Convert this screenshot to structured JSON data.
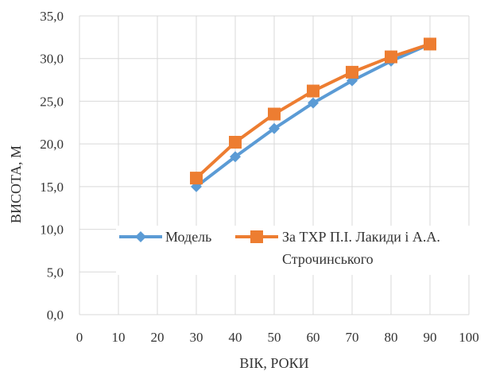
{
  "chart_data": {
    "type": "line",
    "title": "",
    "xlabel": "ВІК, РОКИ",
    "ylabel": "ВИСОТА, М",
    "xlim": [
      0,
      100
    ],
    "ylim": [
      0,
      35
    ],
    "x_ticks": [
      "0",
      "10",
      "20",
      "30",
      "40",
      "50",
      "60",
      "70",
      "80",
      "90",
      "100"
    ],
    "y_ticks": [
      "0,0",
      "5,0",
      "10,0",
      "15,0",
      "20,0",
      "25,0",
      "30,0",
      "35,0"
    ],
    "grid": true,
    "legend_position": "center",
    "series": [
      {
        "name": "Модель",
        "color": "#5B9BD5",
        "marker": "diamond",
        "x": [
          30,
          40,
          50,
          60,
          70,
          80,
          90
        ],
        "values": [
          15.0,
          18.5,
          21.8,
          24.8,
          27.4,
          29.7,
          31.7
        ]
      },
      {
        "name": "За ТХР П.І. Лакиди і А.А. Строчинського",
        "name_lines": [
          "За ТХР П.І. Лакиди і А.А.",
          "Строчинського"
        ],
        "color": "#ED7D31",
        "marker": "square",
        "x": [
          30,
          40,
          50,
          60,
          70,
          80,
          90
        ],
        "values": [
          16.0,
          20.2,
          23.5,
          26.2,
          28.4,
          30.2,
          31.7
        ]
      }
    ]
  }
}
